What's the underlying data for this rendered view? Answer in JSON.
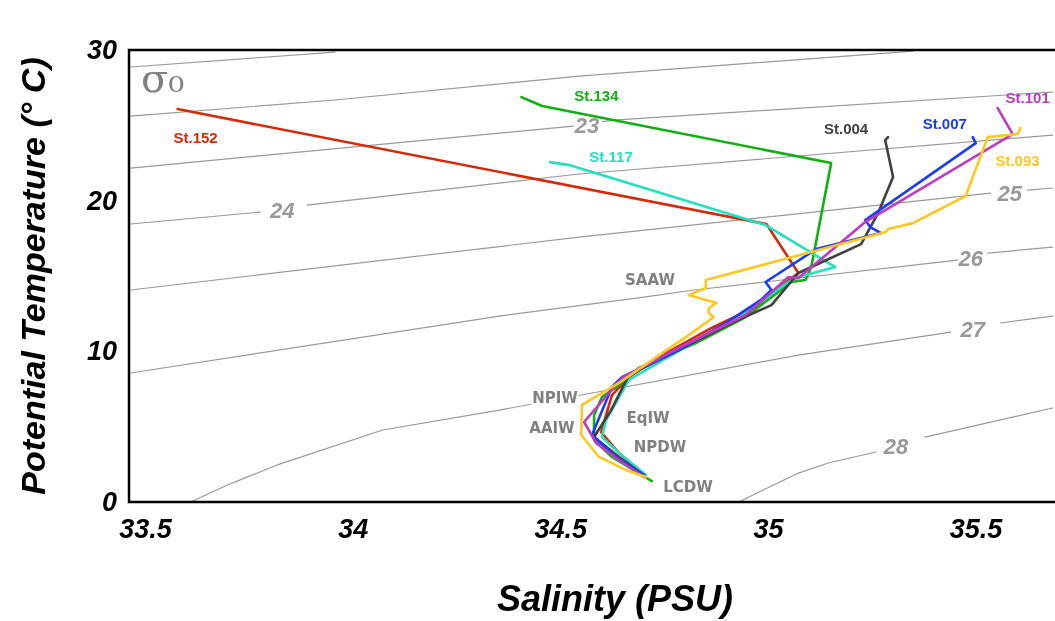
{
  "chart_data": {
    "type": "line",
    "xlabel": "Salinity (PSU)",
    "ylabel": "Potential Temperature (° C)",
    "xlim": [
      33.46,
      35.69
    ],
    "ylim": [
      0,
      30
    ],
    "xticks": [
      33.5,
      34,
      34.5,
      35,
      35.5
    ],
    "yticks": [
      0,
      10,
      20,
      30
    ],
    "grid": false,
    "marker": "none",
    "line_style": "solid",
    "annotations": [
      "σ₀",
      "SAAW",
      "NPIW",
      "AAIW",
      "EqIW",
      "NPDW",
      "LCDW"
    ],
    "series": [
      {
        "color": "#999999",
        "x": [
          33.464,
          33.956
        ],
        "values": [
          28.87,
          29.86
        ]
      },
      {
        "color": "#999999",
        "x": [
          33.464,
          33.956,
          34.544,
          35.348
        ],
        "values": [
          25.61,
          26.68,
          28.27,
          29.93
        ]
      },
      {
        "name": "23",
        "color": "#999999",
        "x": [
          33.464,
          34.53,
          34.563,
          34.6,
          34.628,
          35.684
        ],
        "values": [
          22.16,
          24.95,
          null,
          25.24,
          25.35,
          27.21
        ]
      },
      {
        "name": "24",
        "color": "#999999",
        "x": [
          33.464,
          33.776,
          33.829,
          33.889,
          34.544,
          35.684
        ],
        "values": [
          18.45,
          19.24,
          null,
          19.71,
          21.77,
          24.35
        ]
      },
      {
        "name": "25",
        "color": "#999999",
        "x": [
          33.464,
          34.544,
          35.535,
          35.581,
          35.624,
          35.684
        ],
        "values": [
          14.07,
          17.58,
          20.5,
          null,
          20.7,
          20.84
        ]
      },
      {
        "name": "26",
        "color": "#999999",
        "x": [
          33.464,
          34.352,
          34.7,
          34.82,
          35.456,
          35.487,
          35.528,
          35.684
        ],
        "values": [
          8.56,
          12.34,
          13.6,
          14.07,
          16.06,
          null,
          16.52,
          16.92
        ]
      },
      {
        "name": "27",
        "color": "#999999",
        "x": [
          33.608,
          33.697,
          33.817,
          34.071,
          34.352,
          35.072,
          35.439,
          35.492,
          35.559,
          35.684
        ],
        "values": [
          0,
          1.13,
          2.46,
          4.78,
          6.1,
          9.75,
          11.28,
          null,
          11.88,
          12.34
        ]
      },
      {
        "name": "28",
        "color": "#999999",
        "x": [
          34.928,
          35.072,
          35.144,
          35.259,
          35.307,
          35.377,
          35.684
        ],
        "values": [
          0,
          1.92,
          2.59,
          3.32,
          null,
          4.31,
          6.24
        ]
      },
      {
        "name": "St.152",
        "color": "#d42a0a",
        "x": [
          33.577,
          34.995,
          35.072,
          35.055,
          34.969,
          34.863,
          34.736,
          34.664,
          34.623,
          34.597,
          34.64,
          34.7
        ],
        "values": [
          26.08,
          18.45,
          15.2,
          14.86,
          12.94,
          11.55,
          9.62,
          8.29,
          7.1,
          4.64,
          3.25,
          1.79
        ]
      },
      {
        "name": "St.134",
        "color": "#10b010",
        "x": [
          34.405,
          34.455,
          35.151,
          35.103,
          35.089,
          35.055,
          34.945,
          34.825,
          34.688,
          34.64,
          34.599,
          34.58,
          34.58,
          34.623,
          34.719
        ],
        "values": [
          26.87,
          26.28,
          22.5,
          15.59,
          14.73,
          14.6,
          12.28,
          10.55,
          8.89,
          7.76,
          6.97,
          5.77,
          4.11,
          2.99,
          1.39
        ]
      },
      {
        "name": "St.117",
        "color": "#22e0c0",
        "x": [
          34.474,
          34.52,
          34.993,
          35.161,
          35.072,
          35.048,
          34.928,
          34.801,
          34.664,
          34.609,
          34.599,
          34.64,
          34.705
        ],
        "values": [
          22.56,
          22.36,
          18.38,
          15.59,
          14.93,
          14.6,
          12.21,
          10.29,
          8.1,
          5.44,
          4.31,
          3.25,
          1.79
        ]
      },
      {
        "name": "St.004",
        "color": "#404040",
        "x": [
          35.288,
          35.281,
          35.3,
          35.264,
          35.223,
          35.072,
          35.007,
          34.911,
          34.784,
          34.664,
          34.621,
          34.58,
          34.64,
          34.7
        ],
        "values": [
          24.22,
          24.02,
          21.57,
          19.18,
          17.12,
          15.2,
          13.07,
          11.88,
          10.09,
          8.43,
          6.1,
          4.31,
          2.99,
          1.79
        ]
      },
      {
        "name": "St.007",
        "color": "#1a3cf5",
        "x": [
          35.492,
          35.499,
          35.233,
          35.245,
          35.271,
          35.115,
          34.993,
          35.007,
          34.981,
          34.897,
          34.784,
          34.647,
          34.623,
          34.575,
          34.633,
          34.7
        ],
        "values": [
          24.22,
          23.82,
          18.71,
          18.25,
          17.85,
          16.79,
          14.6,
          14.07,
          13.4,
          11.88,
          10.09,
          8.29,
          7.63,
          4.45,
          2.99,
          1.79
        ]
      },
      {
        "name": "St.101",
        "color": "#c03ac0",
        "x": [
          35.552,
          35.588,
          35.233,
          35.072,
          35.048,
          34.945,
          34.784,
          34.647,
          34.556,
          34.585,
          34.64,
          34.7
        ],
        "values": [
          26.14,
          24.42,
          18.58,
          14.86,
          14.93,
          12.41,
          10.22,
          8.23,
          5.31,
          3.92,
          2.79,
          1.66
        ]
      },
      {
        "name": "St.093",
        "color": "#ffc820",
        "x": [
          35.607,
          35.6,
          35.528,
          35.475,
          35.348,
          35.288,
          35.283,
          34.849,
          34.849,
          34.808,
          34.875,
          34.856,
          34.856,
          34.868,
          34.815,
          34.719,
          34.64,
          34.551,
          34.549,
          34.592,
          34.657,
          34.705
        ],
        "values": [
          24.82,
          24.42,
          24.22,
          20.31,
          18.51,
          18.12,
          17.92,
          14.73,
          14.2,
          13.74,
          13.21,
          12.87,
          12.54,
          12.28,
          11.21,
          9.42,
          7.9,
          6.44,
          4.45,
          2.99,
          2.12,
          1.66
        ]
      }
    ]
  }
}
